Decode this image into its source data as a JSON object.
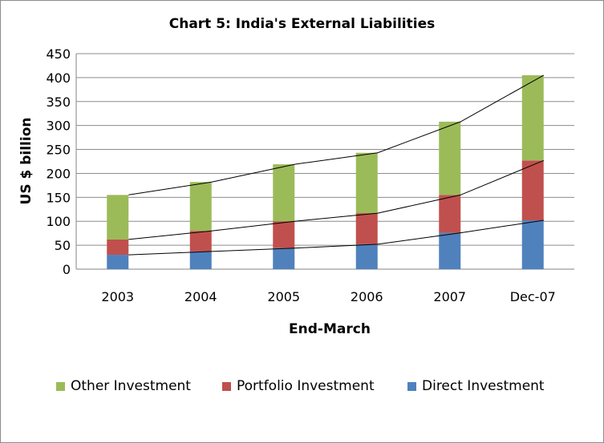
{
  "chart_data": {
    "type": "bar",
    "stacked": true,
    "title": "Chart 5: India's External Liabilities",
    "xlabel": "End-March",
    "ylabel": "US $ billion",
    "categories": [
      "2003",
      "2004",
      "2005",
      "2006",
      "2007",
      "Dec-07"
    ],
    "ylim": [
      0,
      450
    ],
    "yticks": [
      0,
      50,
      100,
      150,
      200,
      250,
      300,
      350,
      400,
      450
    ],
    "grid": true,
    "legend_position": "bottom",
    "series": [
      {
        "name": "Direct Investment",
        "color": "#4f81bd",
        "values": [
          30,
          37,
          44,
          52,
          76,
          102
        ]
      },
      {
        "name": "Portfolio Investment",
        "color": "#c0504d",
        "values": [
          32,
          43,
          56,
          65,
          79,
          125
        ]
      },
      {
        "name": "Other Investment",
        "color": "#9bbb59",
        "values": [
          93,
          102,
          119,
          126,
          153,
          178
        ]
      }
    ],
    "legend_order": [
      "Other Investment",
      "Portfolio Investment",
      "Direct Investment"
    ]
  }
}
